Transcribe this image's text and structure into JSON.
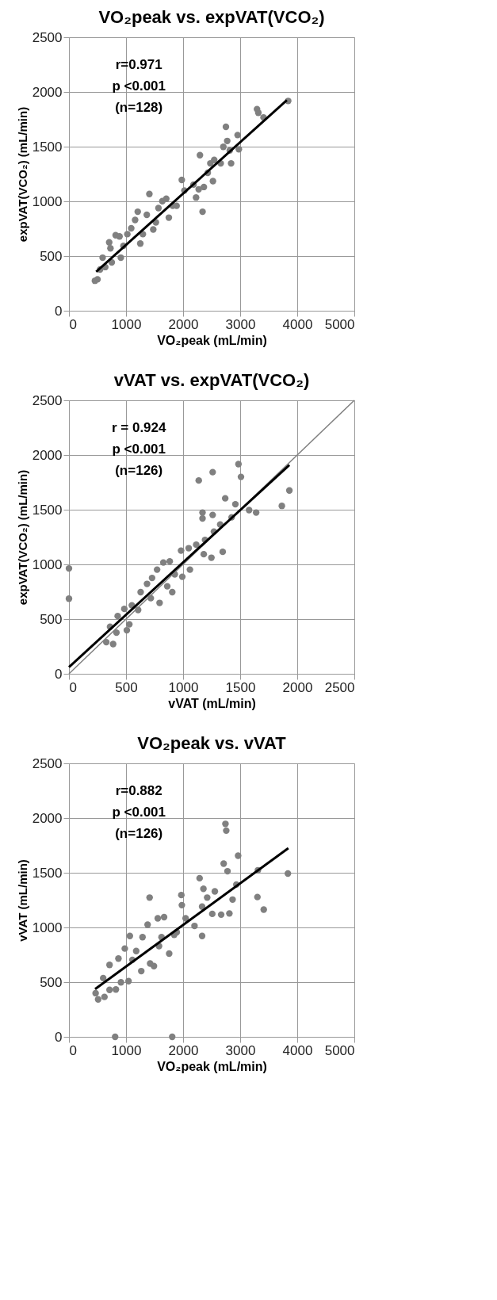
{
  "chart_data": [
    {
      "type": "scatter",
      "title": "VO₂peak vs. expVAT(VCO₂)",
      "xlabel": "VO₂peak (mL/min)",
      "ylabel": "expVAT(VCO₂) (mL/min)",
      "xlim": [
        0,
        5000
      ],
      "ylim": [
        0,
        2500
      ],
      "xticks": [
        0,
        1000,
        2000,
        3000,
        4000,
        5000
      ],
      "yticks": [
        0,
        500,
        1000,
        1500,
        2000,
        2500
      ],
      "grid": true,
      "annotations": [
        "r=0.971",
        "p <0.001",
        "(n=128)"
      ],
      "series": [
        {
          "marker": "circle",
          "color": "#808080",
          "x": [
            455,
            500,
            545,
            590,
            636,
            705,
            727,
            750,
            818,
            886,
            909,
            955,
            1023,
            1091,
            1159,
            1205,
            1250,
            1295,
            1364,
            1409,
            1477,
            1523,
            1568,
            1636,
            1705,
            1750,
            1818,
            1886,
            1977,
            2023,
            2182,
            2227,
            2273,
            2295,
            2341,
            2364,
            2432,
            2477,
            2523,
            2545,
            2659,
            2705,
            2750,
            2773,
            2818,
            2841,
            2955,
            2977,
            3295,
            3318,
            3409,
            3841
          ],
          "values": [
            274,
            287,
            377,
            485,
            399,
            625,
            571,
            442,
            690,
            679,
            485,
            593,
            700,
            754,
            830,
            905,
            614,
            700,
            877,
            1067,
            743,
            808,
            938,
            1002,
            1024,
            851,
            959,
            959,
            1196,
            1099,
            1153,
            1035,
            1110,
            1422,
            905,
            1131,
            1261,
            1347,
            1185,
            1379,
            1347,
            1498,
            1681,
            1552,
            1466,
            1347,
            1606,
            1476,
            1843,
            1810,
            1767,
            1918
          ]
        },
        {
          "type": "line",
          "color": "#000000",
          "x": [
            477,
            3818
          ],
          "values": [
            356,
            1925
          ]
        }
      ]
    },
    {
      "type": "scatter",
      "title": "vVAT vs. expVAT(VCO₂)",
      "xlabel": "vVAT (mL/min)",
      "ylabel": "expVAT(VCO₂) (mL/min)",
      "xlim": [
        0,
        2500
      ],
      "ylim": [
        0,
        2500
      ],
      "xticks": [
        0,
        500,
        1000,
        1500,
        2000,
        2500
      ],
      "yticks": [
        0,
        500,
        1000,
        1500,
        2000,
        2500
      ],
      "grid": true,
      "annotations": [
        "r = 0.924",
        "p <0.001",
        "(n=126)"
      ],
      "series": [
        {
          "marker": "circle",
          "color": "#808080",
          "x": [
            0,
            0,
            327,
            387,
            360,
            416,
            427,
            485,
            507,
            529,
            551,
            606,
            628,
            684,
            717,
            728,
            772,
            794,
            827,
            861,
            883,
            905,
            927,
            982,
            993,
            1060,
            1049,
            1115,
            1137,
            1170,
            1170,
            1181,
            1192,
            1248,
            1259,
            1259,
            1270,
            1325,
            1347,
            1369,
            1425,
            1458,
            1485,
            1507,
            1578,
            1640,
            1865,
            1931
          ],
          "values": [
            963,
            687,
            289,
            272,
            430,
            376,
            528,
            593,
            398,
            452,
            626,
            583,
            746,
            822,
            691,
            876,
            952,
            648,
            1017,
            800,
            1028,
            746,
            909,
            1126,
            887,
            952,
            1148,
            1180,
            1767,
            1474,
            1420,
            1093,
            1224,
            1061,
            1843,
            1452,
            1300,
            1365,
            1115,
            1604,
            1430,
            1550,
            1917,
            1800,
            1496,
            1474,
            1535,
            1676
          ]
        },
        {
          "type": "line",
          "color": "#808080",
          "x": [
            0,
            2500
          ],
          "values": [
            0,
            2500
          ]
        },
        {
          "type": "line",
          "color": "#000000",
          "x": [
            0,
            1931
          ],
          "values": [
            61,
            1909
          ]
        }
      ]
    },
    {
      "type": "scatter",
      "title": "VO₂peak vs. vVAT",
      "xlabel": "VO₂peak (mL/min)",
      "ylabel": "vVAT (mL/min)",
      "xlim": [
        0,
        5000
      ],
      "ylim": [
        0,
        2500
      ],
      "xticks": [
        0,
        1000,
        2000,
        3000,
        4000,
        5000
      ],
      "yticks": [
        0,
        500,
        1000,
        1500,
        2000,
        2500
      ],
      "grid": true,
      "annotations": [
        "r=0.882",
        "p <0.001",
        "(n=126)"
      ],
      "series": [
        {
          "marker": "circle",
          "color": "#808080",
          "x": [
            467,
            511,
            622,
            600,
            711,
            711,
            822,
            809,
            1809,
            867,
            911,
            978,
            1044,
            1067,
            1111,
            1178,
            1267,
            1289,
            1378,
            1413,
            1422,
            1489,
            1556,
            1578,
            1622,
            1667,
            1756,
            1844,
            1889,
            1969,
            1978,
            2044,
            2200,
            2289,
            2333,
            2333,
            2356,
            2422,
            2511,
            2556,
            2667,
            2711,
            2742,
            2756,
            2778,
            2811,
            2867,
            2933,
            2964,
            3302,
            3311,
            3413,
            3836
          ],
          "values": [
            399,
            342,
            365,
            537,
            429,
            658,
            433,
            0,
            0,
            716,
            498,
            807,
            509,
            922,
            704,
            784,
            601,
            911,
            1025,
            1273,
            670,
            647,
            1083,
            830,
            911,
            1094,
            761,
            933,
            956,
            1296,
            1204,
            1083,
            1014,
            1450,
            922,
            1190,
            1353,
            1273,
            1124,
            1330,
            1117,
            1583,
            1947,
            1885,
            1514,
            1128,
            1255,
            1392,
            1656,
            1278,
            1523,
            1163,
            1493
          ]
        },
        {
          "type": "line",
          "color": "#000000",
          "x": [
            458,
            3844
          ],
          "values": [
            436,
            1725
          ]
        }
      ]
    }
  ]
}
